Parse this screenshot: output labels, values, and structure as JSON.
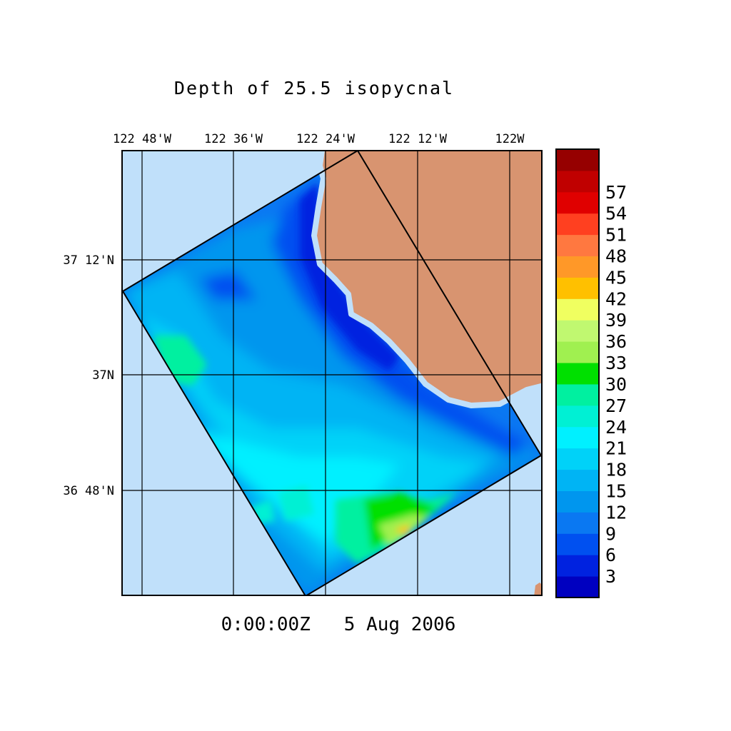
{
  "chart_data": {
    "type": "heatmap",
    "title": "Depth of 25.5 isopycnal",
    "timestamp": "0:00:00Z   5 Aug 2006",
    "x_ticks": [
      "122 48'W",
      "122 36'W",
      "122 24'W",
      "122 12'W",
      "122W"
    ],
    "y_ticks": [
      "37 12'N",
      "37N",
      "36 48'N"
    ],
    "colorbar": {
      "levels": [
        3,
        6,
        9,
        12,
        15,
        18,
        21,
        24,
        27,
        30,
        33,
        36,
        39,
        42,
        45,
        48,
        51,
        54,
        57
      ],
      "labels": [
        "57",
        "54",
        "51",
        "48",
        "45",
        "42",
        "39",
        "36",
        "33",
        "30",
        "27",
        "24",
        "21",
        "18",
        "15",
        "12",
        "9",
        "6",
        "3"
      ],
      "colors": [
        "#0000c0",
        "#0022e0",
        "#0050f0",
        "#0a78f2",
        "#0096ee",
        "#00b4f4",
        "#00d2f8",
        "#00f0ff",
        "#00f0d4",
        "#00f0a0",
        "#00e000",
        "#a0f050",
        "#c0f870",
        "#f0ff60",
        "#ffc000",
        "#ff9828",
        "#ff7840",
        "#ff4020",
        "#e00000",
        "#c00000",
        "#960000"
      ]
    },
    "colors": {
      "land": "#d89470",
      "ocean_background": "#c0e0fa"
    }
  }
}
